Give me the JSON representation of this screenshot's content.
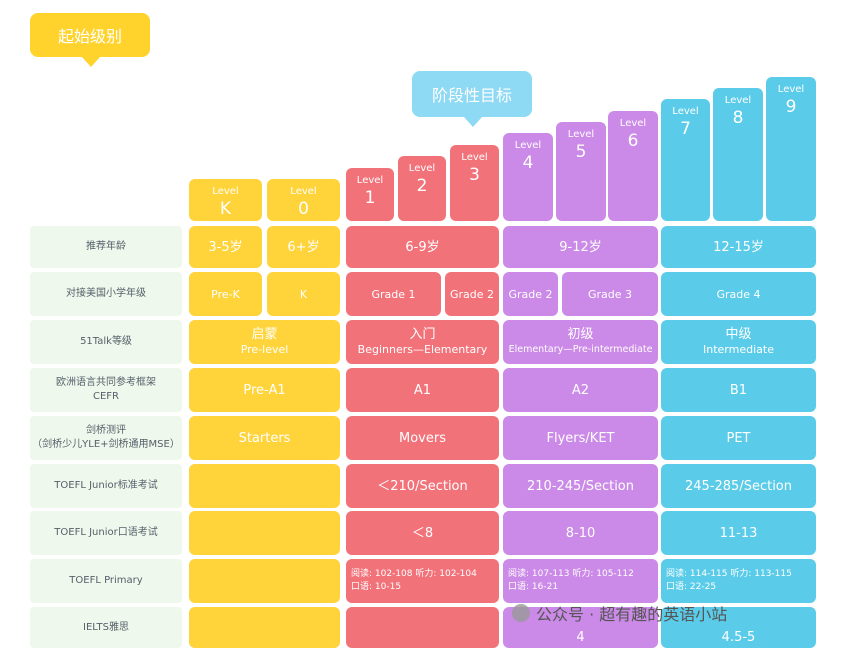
{
  "header": {
    "start_label": "起始级别",
    "goal_label": "阶段性目标"
  },
  "levels": [
    {
      "word": "Level",
      "num": "K"
    },
    {
      "word": "Level",
      "num": "0"
    },
    {
      "word": "Level",
      "num": "1"
    },
    {
      "word": "Level",
      "num": "2"
    },
    {
      "word": "Level",
      "num": "3"
    },
    {
      "word": "Level",
      "num": "4"
    },
    {
      "word": "Level",
      "num": "5"
    },
    {
      "word": "Level",
      "num": "6"
    },
    {
      "word": "Level",
      "num": "7"
    },
    {
      "word": "Level",
      "num": "8"
    },
    {
      "word": "Level",
      "num": "9"
    }
  ],
  "rows": {
    "age": {
      "label": "推荐年龄",
      "k": "3-5岁",
      "l0": "6+岁",
      "red": "6-9岁",
      "purple": "9-12岁",
      "blue": "12-15岁"
    },
    "grade": {
      "label": "对接美国小学年级",
      "k": "Pre-K",
      "l0": "K",
      "l1": "Grade 1",
      "l3": "Grade 2",
      "l4": "Grade 2",
      "l56": "Grade 3",
      "blue": "Grade 4"
    },
    "talk": {
      "label": "51Talk等级",
      "yellow_cn": "启蒙",
      "yellow_en": "Pre-level",
      "red_cn": "入门",
      "red_en": "Beginners—Elementary",
      "purple_cn": "初级",
      "purple_en": "Elementary—Pre-intermediate",
      "blue_cn": "中级",
      "blue_en": "Intermediate"
    },
    "cefr": {
      "label1": "欧洲语言共同参考框架",
      "label2": "CEFR",
      "yellow": "Pre-A1",
      "red": "A1",
      "purple": "A2",
      "blue": "B1"
    },
    "cambridge": {
      "label1": "剑桥测评",
      "label2": "（剑桥少儿YLE+剑桥通用MSE）",
      "yellow": "Starters",
      "red": "Movers",
      "purple": "Flyers/KET",
      "blue": "PET"
    },
    "toefl_std": {
      "label": "TOEFL Junior标准考试",
      "red": "＜210/Section",
      "purple": "210-245/Section",
      "blue": "245-285/Section"
    },
    "toefl_oral": {
      "label": "TOEFL Junior口语考试",
      "red": "＜8",
      "purple": "8-10",
      "blue": "11-13"
    },
    "toefl_primary": {
      "label": "TOEFL Primary",
      "red_l1": "阅读: 102-108  听力: 102-104",
      "red_l2": "口语: 10-15",
      "purple_l1": "阅读: 107-113  听力: 105-112",
      "purple_l2": "口语: 16-21",
      "blue_l1": "阅读: 114-115  听力: 113-115",
      "blue_l2": "口语: 22-25"
    },
    "ielts": {
      "label": "IELTS雅思",
      "purple": "4",
      "blue": "4.5-5"
    }
  },
  "watermark": "公众号 · 超有趣的英语小站",
  "colors": {
    "yellow": "#ffd33a",
    "red": "#f2727a",
    "purple": "#cb8ae7",
    "blue": "#5acce9",
    "label_bg": "#eef8ec"
  }
}
